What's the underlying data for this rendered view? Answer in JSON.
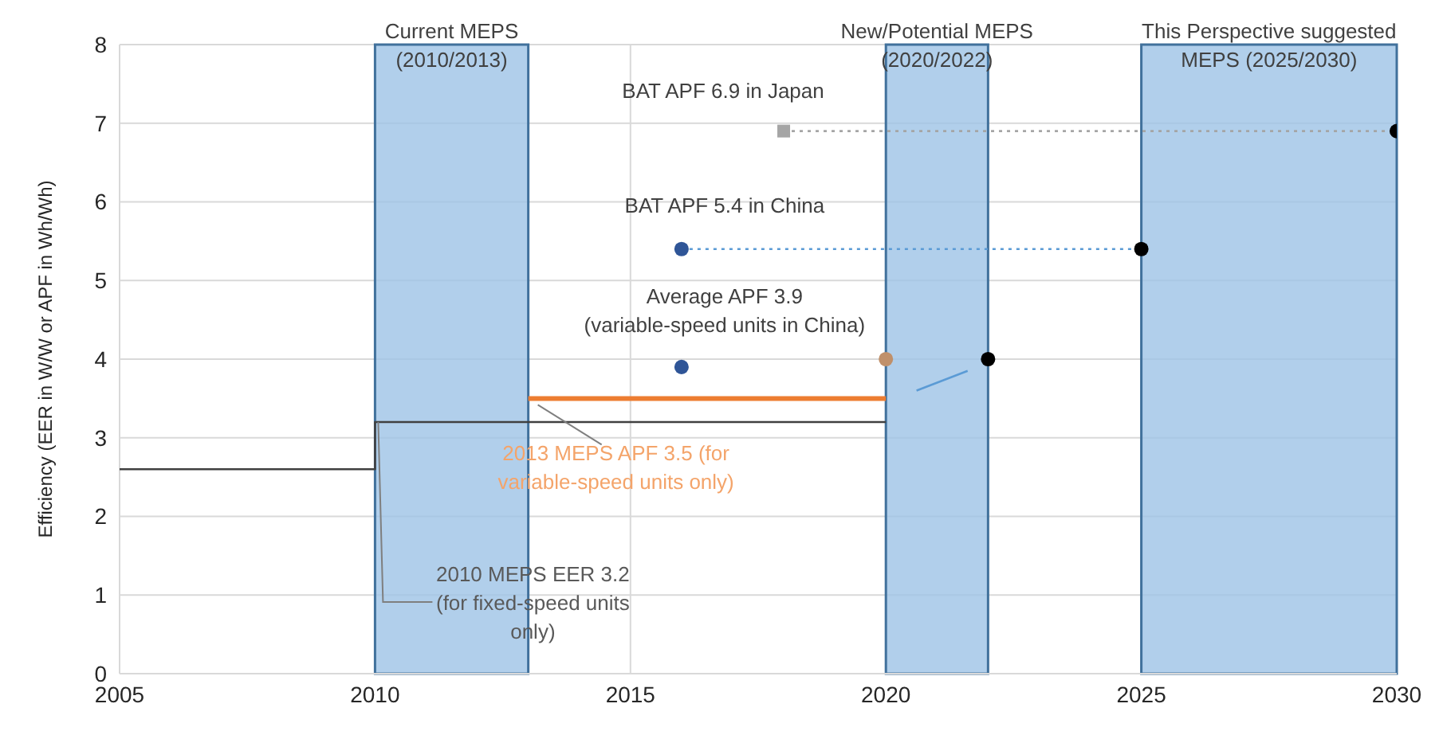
{
  "chart_data": {
    "type": "line",
    "ylabel": "Efficiency (EER in W/W or APF in Wh/Wh)",
    "xlim": [
      2005,
      2030
    ],
    "xticks": [
      2005,
      2010,
      2015,
      2020,
      2025,
      2030
    ],
    "ylim": [
      0,
      8
    ],
    "yticks": [
      0,
      1,
      2,
      3,
      4,
      5,
      6,
      7,
      8
    ],
    "grid": true,
    "bands": [
      {
        "axis": "x",
        "from": 2010,
        "to": 2013,
        "label": "Current MEPS\n(2010/2013)",
        "color": "#9dc3e6"
      },
      {
        "axis": "x",
        "from": 2020,
        "to": 2022,
        "label": "New/Potential MEPS\n(2020/2022)",
        "color": "#9dc3e6"
      },
      {
        "axis": "x",
        "from": 2025,
        "to": 2030,
        "label": "This Perspective suggested\nMEPS (2025/2030)",
        "color": "#9dc3e6"
      }
    ],
    "series": [
      {
        "color": "#404040",
        "marker": "none",
        "line_style": "solid",
        "x": [
          2005,
          2010,
          2010,
          2020
        ],
        "values": [
          2.6,
          2.6,
          3.2,
          3.2
        ]
      },
      {
        "color": "#ed7d31",
        "marker": "none",
        "line_style": "solid",
        "x": [
          2013,
          2020
        ],
        "values": [
          3.5,
          3.5
        ]
      },
      {
        "color": "#a5a5a5",
        "marker": "none",
        "line_style": "dotted",
        "x": [
          2018,
          2030
        ],
        "values": [
          6.9,
          6.9
        ]
      },
      {
        "color": "#5b9bd5",
        "marker": "none",
        "line_style": "dotted",
        "x": [
          2016,
          2025
        ],
        "values": [
          5.4,
          5.4
        ]
      },
      {
        "color": "#5b9bd5",
        "marker": "none",
        "line_style": "solid",
        "x": [
          2020.6,
          2021.6
        ],
        "values": [
          3.6,
          3.85
        ]
      },
      {
        "type": "scatter",
        "color": "#2f5597",
        "marker": "circle",
        "x": [
          2016,
          2016
        ],
        "values": [
          5.4,
          3.9
        ]
      },
      {
        "type": "scatter",
        "color": "#a5a5a5",
        "marker": "square",
        "x": [
          2018
        ],
        "values": [
          6.9
        ]
      },
      {
        "type": "scatter",
        "color": "#c0906a",
        "marker": "circle",
        "x": [
          2020
        ],
        "values": [
          4.0
        ]
      },
      {
        "type": "scatter",
        "color": "#000000",
        "marker": "circle",
        "x": [
          2022,
          2025,
          2030
        ],
        "values": [
          4.0,
          5.4,
          6.9
        ]
      }
    ],
    "annotations": [
      {
        "text": "BAT APF 6.9 in Japan",
        "x": 2018,
        "y": 6.9
      },
      {
        "text": "BAT APF 5.4 in China",
        "x": 2016,
        "y": 5.4
      },
      {
        "text": "Average APF 3.9\n(variable-speed units in China)",
        "x": 2016,
        "y": 3.9
      },
      {
        "text": "2013 MEPS APF 3.5 (for\nvariable-speed units only)",
        "x": 2013,
        "y": 3.5
      },
      {
        "text": "2010 MEPS EER 3.2\n(for fixed-speed units\nonly)",
        "x": 2010,
        "y": 3.2
      }
    ]
  }
}
